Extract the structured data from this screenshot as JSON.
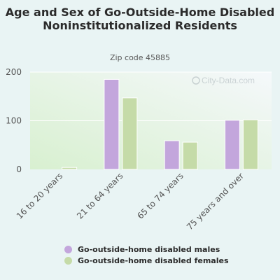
{
  "title": "Age and Sex of Go-Outside-Home Disabled Noninstitutionalized Residents",
  "subtitle": "Zip code 45885",
  "watermark": "City-Data.com",
  "colors": {
    "males": "#c3a6dc",
    "females": "#c5dba8",
    "text": "#555555"
  },
  "chart_data": {
    "type": "bar",
    "categories": [
      "16 to 20 years",
      "21 to 64 years",
      "65 to 74 years",
      "75 years and over"
    ],
    "series": [
      {
        "name": "Go-outside-home disabled males",
        "values": [
          0,
          185,
          59,
          101
        ]
      },
      {
        "name": "Go-outside-home disabled females",
        "values": [
          4,
          147,
          56,
          102
        ]
      }
    ],
    "ylim": [
      0,
      200
    ],
    "yticks": [
      "0",
      "100",
      "200"
    ],
    "grid": true,
    "legend": "bottom"
  }
}
